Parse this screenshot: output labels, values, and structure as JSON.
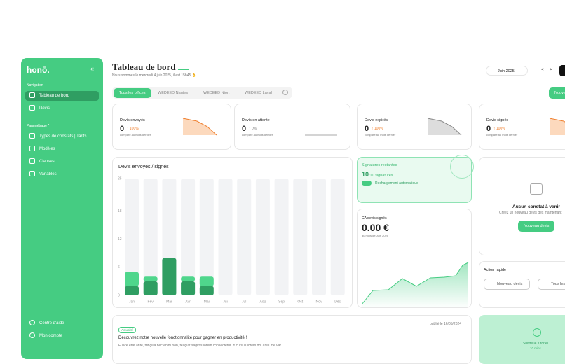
{
  "sidebar": {
    "logo": "honō.",
    "collapse": "«",
    "nav_heading": "Navigation",
    "nav": [
      "Tableau de bord",
      "Devis"
    ],
    "settings_heading": "Paramétrage ^",
    "settings": [
      "Types de constats | Tarifs",
      "Modèles",
      "Clauses",
      "Variables"
    ],
    "footer": [
      "Centre d'aide",
      "Mon compte"
    ]
  },
  "header": {
    "title": "Tableau de bord",
    "subtitle": "Nous sommes le mercredi 4 juin 2025, il est 15h45 👌",
    "month": "Juin 2025",
    "prev": "<",
    "next": ">",
    "action": "Nouveau devis"
  },
  "tabs": [
    "Tous les offices",
    "WEDEED Nantes",
    "WEDEED Niort",
    "WEDEED Laval"
  ],
  "stats": [
    {
      "label": "Devis envoyés",
      "value": "0",
      "delta": "100%",
      "note": "comparé au mois dernier"
    },
    {
      "label": "Devis en attente",
      "value": "0",
      "delta": "0%",
      "note": "comparé au mois dernier"
    },
    {
      "label": "Devis expirés",
      "value": "0",
      "delta": "100%",
      "note": "comparé au mois dernier"
    },
    {
      "label": "Devis signés",
      "value": "0",
      "delta": "100%",
      "note": "comparé au mois dernier"
    }
  ],
  "bar_chart": {
    "type": "bar",
    "title": "Devis envoyés / signés",
    "categories": [
      "Jan",
      "Fév",
      "Mar",
      "Avr",
      "Mai",
      "Jui",
      "Jul",
      "Aoû",
      "Sep",
      "Oct",
      "Nov",
      "Déc"
    ],
    "series": [
      {
        "color": "#2f9e62",
        "values": [
          2,
          3,
          8,
          3,
          2,
          0,
          0,
          0,
          0,
          0,
          0,
          0
        ]
      },
      {
        "color": "#4fd68c",
        "values": [
          3,
          1,
          0,
          1,
          2,
          0,
          0,
          0,
          0,
          0,
          0,
          0
        ]
      }
    ],
    "ylim": [
      0,
      25
    ],
    "yticks": [
      0,
      6,
      12,
      18,
      25
    ],
    "stacked": true,
    "grid": false
  },
  "signatures": {
    "title": "Signatures restantes",
    "count": "10",
    "total": "/10 signatures",
    "auto": "Rechargement automatique"
  },
  "revenue": {
    "title": "CA devis signés",
    "value": "0.00 €",
    "note": "du mois de Juin 2025"
  },
  "upcoming": {
    "title": "Aucun constat à venir",
    "text": "Créez un nouveau devis dès maintenant",
    "button": "Nouveau devis"
  },
  "quick": {
    "title": "Action rapide",
    "buttons": [
      "Nouveau devis",
      "Tous les devis"
    ]
  },
  "news": {
    "tag": "Actualité",
    "date": "publié le 16/05/2024",
    "title": "Découvrez notre nouvelle fonctionnalité pour gagner en productivité !",
    "text": "Fusce erat ante, fringilla nec enim non, feugiat sagittis lorem consectetur ↗ cursus lorem dol ares mé var..."
  },
  "tutorial": {
    "title": "Suivre le tutoriel",
    "duration": "10 mins"
  }
}
